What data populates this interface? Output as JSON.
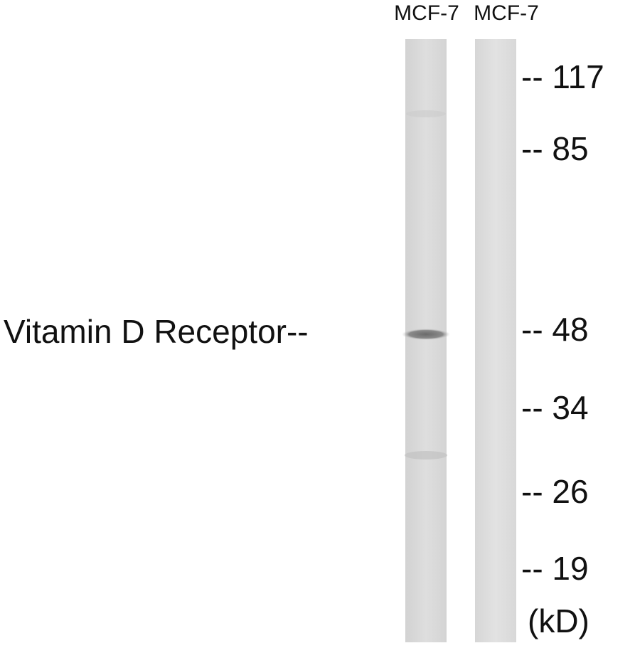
{
  "lanes": [
    {
      "label": "MCF-7"
    },
    {
      "label": "MCF-7"
    }
  ],
  "band_label": "Vitamin D Receptor--",
  "markers": [
    "-- 117",
    "-- 85",
    "-- 48",
    "-- 34",
    "-- 26",
    "-- 19"
  ],
  "unit": "(kD)"
}
